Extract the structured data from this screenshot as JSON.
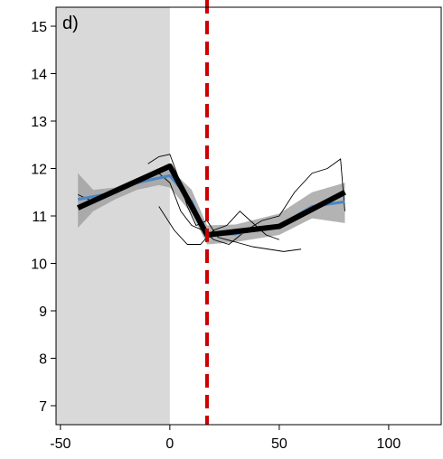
{
  "chart_data": {
    "type": "line",
    "panel_label": "d)",
    "xlim": [
      -52,
      124
    ],
    "ylim": [
      6.6,
      15.4
    ],
    "x_ticks": [
      -50,
      0,
      50,
      100
    ],
    "y_ticks": [
      7,
      8,
      9,
      10,
      11,
      12,
      13,
      14,
      15
    ],
    "grid": false,
    "legend": "none",
    "shaded_region": {
      "x_range": [
        -52,
        0
      ],
      "color": "#d9d9d9"
    },
    "vertical_reference": {
      "x": 17,
      "color": "#cc0000",
      "style": "dashed"
    },
    "colors": {
      "fit": "#000000",
      "smooth": "#4a86c5",
      "ci_band": "#9a9a9a",
      "individual": "#000000",
      "reference": "#cc0000",
      "shade": "#d9d9d9"
    },
    "series": [
      {
        "kind": "segmented_fit",
        "x": [
          -42,
          0,
          17,
          50,
          80
        ],
        "y": [
          11.17,
          12.05,
          10.6,
          10.78,
          11.5
        ]
      },
      {
        "kind": "smooth",
        "x": [
          -42,
          -30,
          -15,
          0,
          10,
          17,
          30,
          50,
          65,
          80
        ],
        "y": [
          11.35,
          11.45,
          11.7,
          11.85,
          11.3,
          10.6,
          10.62,
          10.8,
          11.2,
          11.3
        ]
      },
      {
        "kind": "ci_band",
        "x": [
          -42,
          -35,
          -25,
          -15,
          -5,
          0,
          10,
          17,
          30,
          50,
          65,
          80
        ],
        "lower": [
          10.75,
          11.1,
          11.35,
          11.55,
          11.65,
          11.6,
          11.05,
          10.4,
          10.45,
          10.6,
          10.95,
          10.85
        ],
        "upper": [
          11.9,
          11.55,
          11.6,
          11.8,
          11.95,
          12.0,
          11.55,
          10.8,
          10.82,
          11.05,
          11.5,
          11.7
        ]
      },
      {
        "kind": "individual",
        "x": [
          -42,
          -35,
          -28,
          -20,
          -12,
          -5,
          0,
          5,
          10,
          15,
          20,
          27,
          35,
          42,
          50,
          57,
          65,
          72,
          78,
          80
        ],
        "y": [
          11.45,
          11.3,
          11.5,
          11.6,
          11.8,
          11.9,
          11.7,
          11.1,
          10.8,
          10.7,
          10.5,
          10.4,
          10.7,
          10.9,
          11.0,
          11.5,
          11.9,
          12.0,
          12.2,
          11.1
        ]
      },
      {
        "kind": "individual",
        "x": [
          -10,
          -5,
          0,
          4,
          8,
          12,
          17,
          22,
          30,
          38,
          45,
          52,
          60
        ],
        "y": [
          12.1,
          12.25,
          12.3,
          11.8,
          11.2,
          10.8,
          10.9,
          10.55,
          10.45,
          10.35,
          10.3,
          10.25,
          10.3
        ]
      },
      {
        "kind": "individual",
        "x": [
          -5,
          2,
          8,
          14,
          20,
          26,
          32,
          38,
          44,
          50
        ],
        "y": [
          11.2,
          10.7,
          10.4,
          10.4,
          10.7,
          10.8,
          11.1,
          10.85,
          10.6,
          10.5
        ]
      }
    ]
  }
}
